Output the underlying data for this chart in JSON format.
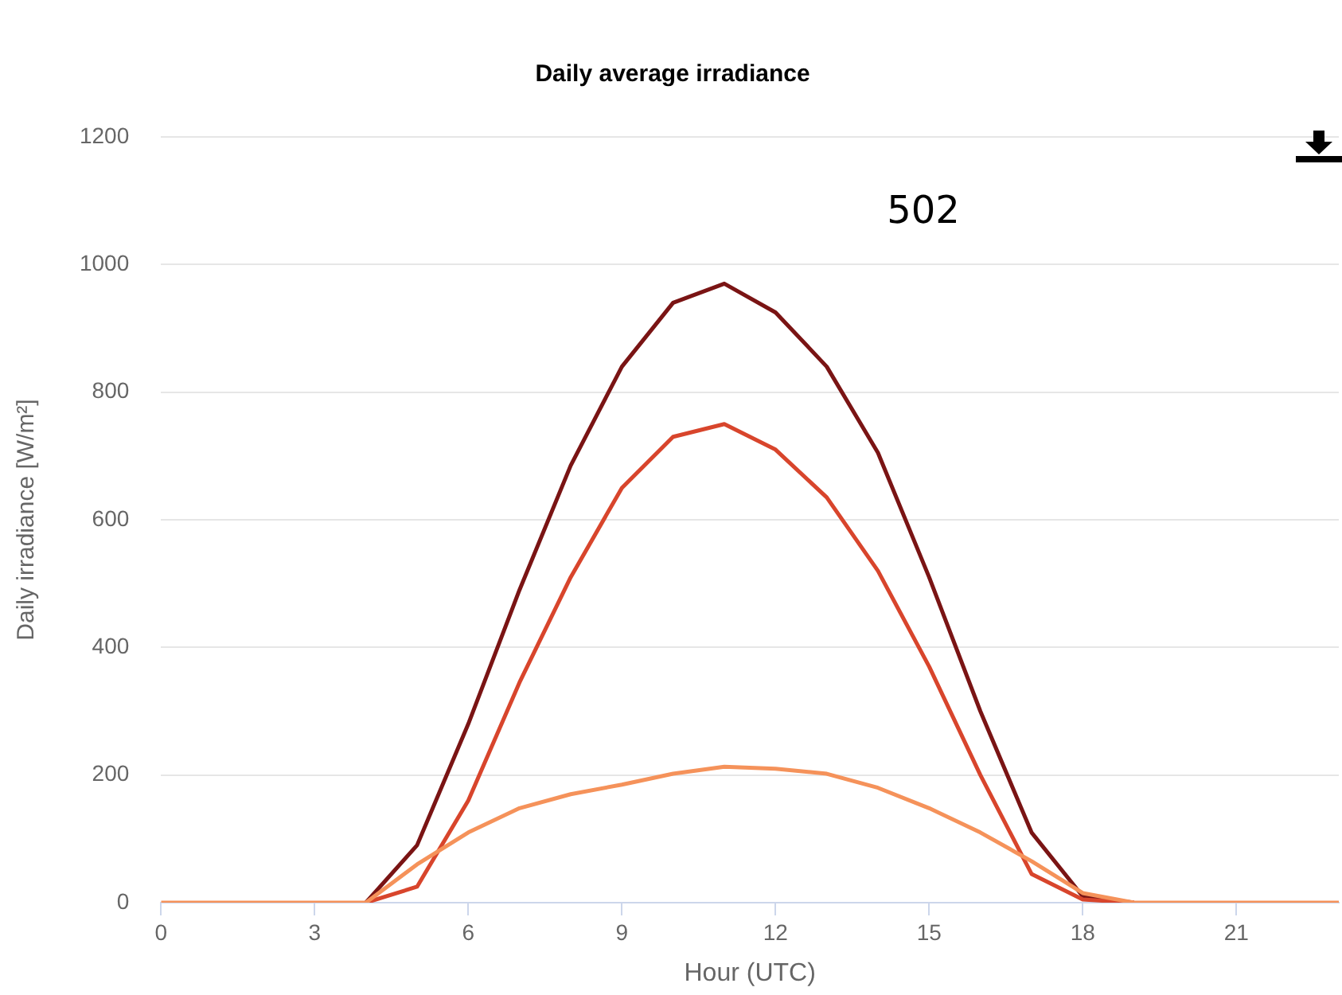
{
  "chart_data": {
    "type": "line",
    "title": "Daily average irradiance",
    "xlabel": "Hour (UTC)",
    "ylabel": "Daily irradiance [W/m²]",
    "annotations": [
      "502"
    ],
    "x": [
      0,
      1,
      2,
      3,
      4,
      5,
      6,
      7,
      8,
      9,
      10,
      11,
      12,
      13,
      14,
      15,
      16,
      17,
      18,
      19,
      20,
      21,
      22,
      23
    ],
    "series": [
      {
        "color": "#7a1414",
        "values": [
          null,
          null,
          null,
          null,
          0,
          90,
          280,
          490,
          685,
          840,
          940,
          970,
          925,
          840,
          705,
          510,
          300,
          110,
          10,
          0,
          null,
          null,
          null,
          null
        ]
      },
      {
        "color": "#d8452c",
        "values": [
          null,
          null,
          null,
          null,
          0,
          25,
          160,
          345,
          510,
          650,
          730,
          750,
          710,
          635,
          520,
          370,
          200,
          45,
          5,
          0,
          null,
          null,
          null,
          null
        ]
      },
      {
        "color": "#f5925a",
        "values": [
          0,
          0,
          0,
          0,
          0,
          60,
          110,
          148,
          170,
          185,
          202,
          213,
          210,
          202,
          180,
          148,
          110,
          65,
          15,
          0,
          0,
          0,
          0,
          0
        ]
      }
    ],
    "xlim": [
      0,
      23
    ],
    "xticks": [
      0,
      3,
      6,
      9,
      12,
      15,
      18,
      21
    ],
    "ylim": [
      0,
      1200
    ],
    "yticks": [
      0,
      200,
      400,
      600,
      800,
      1000,
      1200
    ],
    "grid": "y",
    "legend": false,
    "marker": "none",
    "line_style": "solid"
  }
}
